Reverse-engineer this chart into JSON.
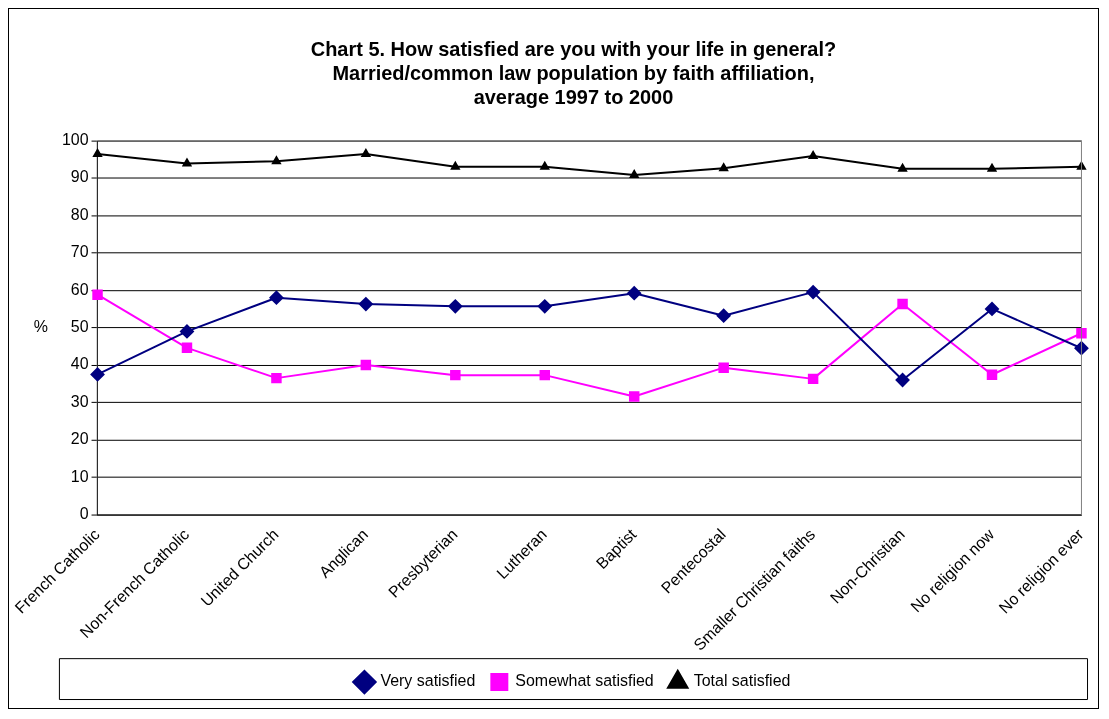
{
  "chart_data": {
    "type": "line",
    "title": "Chart 5. How satisfied are you with your life in general?\nMarried/common law population by faith affiliation,\naverage 1997 to 2000",
    "ylabel": "%",
    "categories": [
      "French Catholic",
      "Non-French Catholic",
      "United Church",
      "Anglican",
      "Presbyterian",
      "Lutheran",
      "Baptist",
      "Pentecostal",
      "Smaller Christian faiths",
      "Non-Christian",
      "No religion now",
      "No religion ever"
    ],
    "series": [
      {
        "name": "Very satisfied",
        "color": "#000080",
        "marker": "diamond",
        "values": [
          37.5,
          49,
          58,
          56.3,
          55.7,
          55.7,
          59.2,
          53.2,
          59.5,
          36,
          55,
          44.5
        ]
      },
      {
        "name": "Somewhat satisfied",
        "color": "#ff00ff",
        "marker": "square",
        "values": [
          58.8,
          44.6,
          36.5,
          40,
          37.3,
          37.3,
          31.6,
          39.3,
          36.3,
          56.3,
          37.4,
          48.5
        ]
      },
      {
        "name": "Total satisfied",
        "color": "#000000",
        "marker": "triangle",
        "values": [
          96.4,
          93.9,
          94.5,
          96.4,
          93,
          93,
          90.8,
          92.6,
          95.9,
          92.5,
          92.5,
          93
        ]
      }
    ],
    "ylim": [
      0,
      100
    ],
    "yticks": [
      0,
      10,
      20,
      30,
      40,
      50,
      60,
      70,
      80,
      90,
      100
    ],
    "grid": "y",
    "legend": "bottom"
  }
}
